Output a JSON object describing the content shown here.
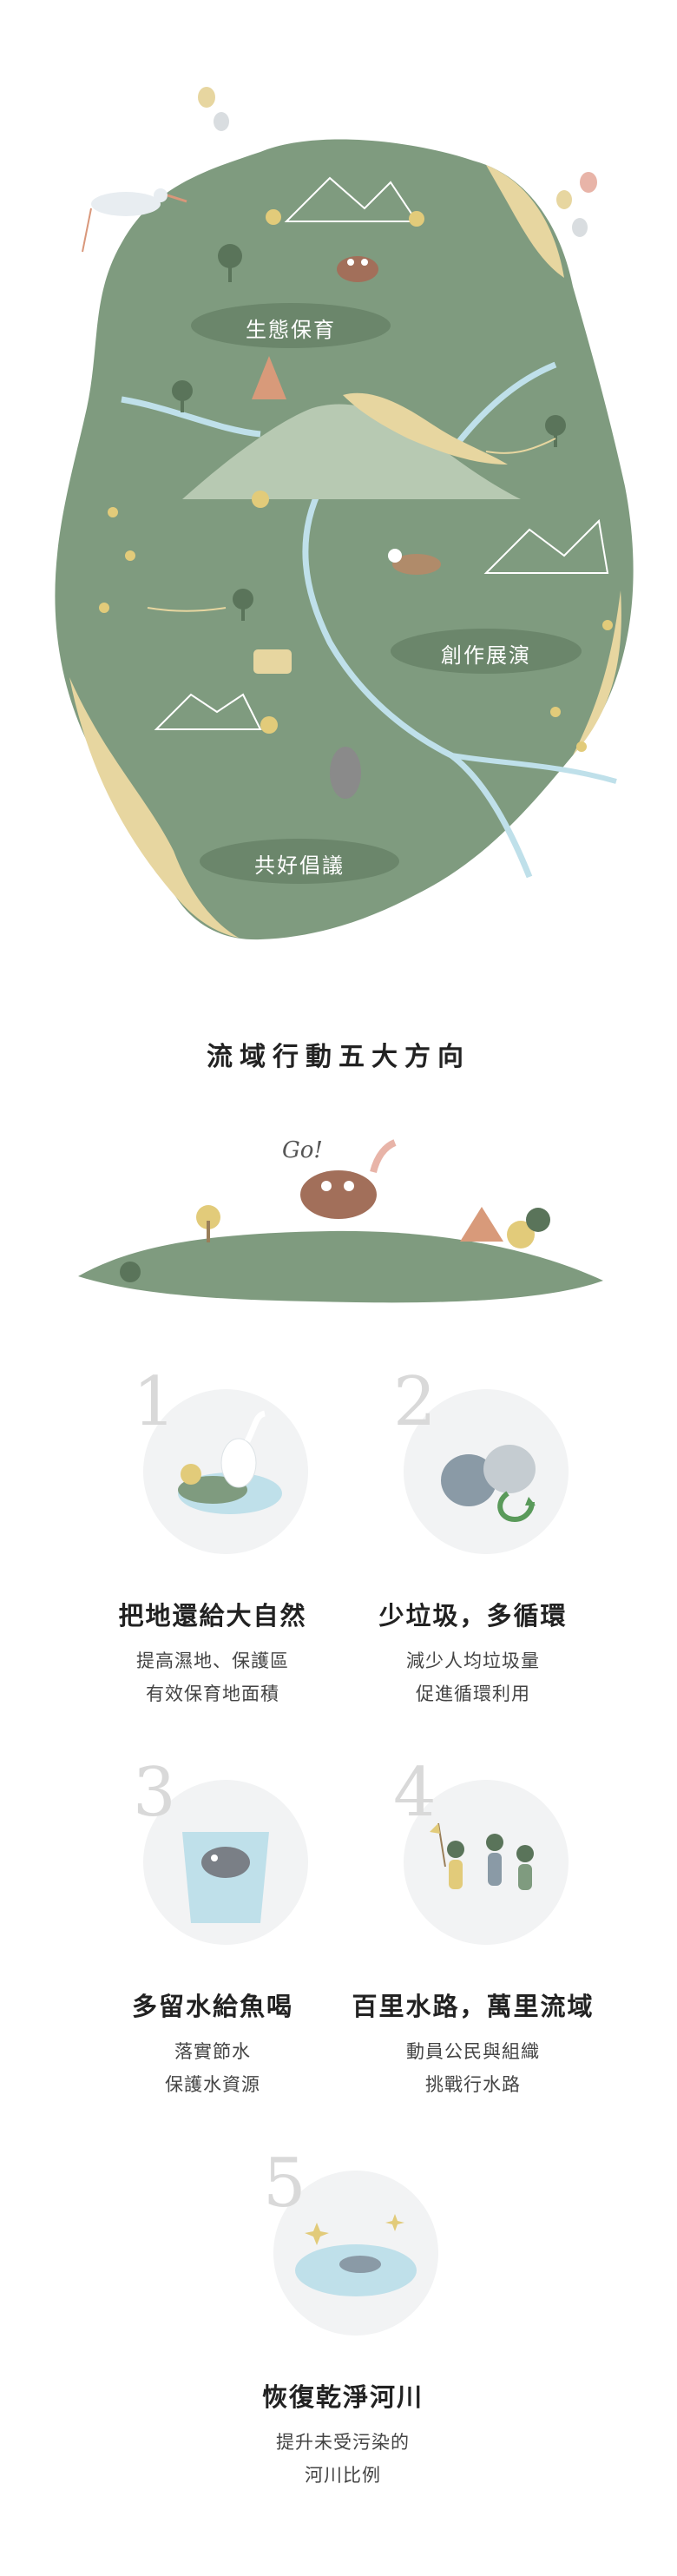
{
  "map": {
    "zones": [
      {
        "label": "生態保育"
      },
      {
        "label": "創作展演"
      },
      {
        "label": "共好倡議"
      }
    ],
    "colors": {
      "land": "#7f9b7f",
      "sand": "#e7d6a0",
      "river": "#bfe0ea"
    }
  },
  "section": {
    "title": "流域行動五大方向"
  },
  "hill": {
    "go_text": "Go!"
  },
  "directions": [
    {
      "num": "1",
      "title": "把地還給大自然",
      "lines": [
        "提高濕地、保護區",
        "有效保育地面積"
      ],
      "icon": "heron-wetland-icon"
    },
    {
      "num": "2",
      "title": "少垃圾，多循環",
      "lines": [
        "減少人均垃圾量",
        "促進循環利用"
      ],
      "icon": "garbage-bag-recycle-icon"
    },
    {
      "num": "3",
      "title": "多留水給魚喝",
      "lines": [
        "落實節水",
        "保護水資源"
      ],
      "icon": "fish-water-cup-icon"
    },
    {
      "num": "4",
      "title": "百里水路，萬里流域",
      "lines": [
        "動員公民與組織",
        "挑戰行水路"
      ],
      "icon": "people-walking-icon"
    },
    {
      "num": "5",
      "title": "恢復乾淨河川",
      "lines": [
        "提升未受污染的",
        "河川比例"
      ],
      "icon": "clean-river-fish-icon"
    }
  ]
}
